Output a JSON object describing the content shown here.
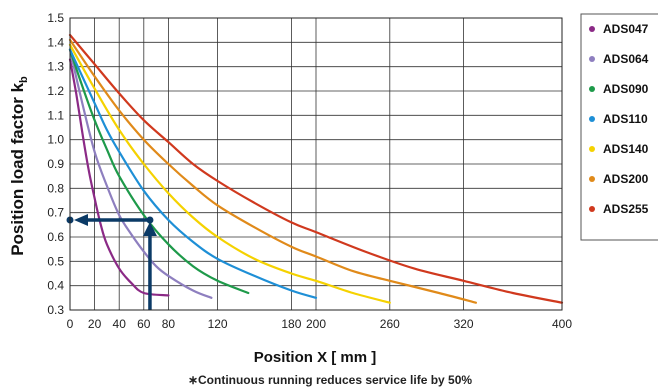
{
  "chart_data": {
    "type": "line",
    "xlabel": "Position X [ mm ]",
    "ylabel_main": "Position load factor k",
    "ylabel_sub": "b",
    "xlim": [
      0,
      400
    ],
    "ylim": [
      0.3,
      1.5
    ],
    "x_ticks": [
      0,
      20,
      40,
      60,
      80,
      120,
      180,
      200,
      260,
      320,
      400
    ],
    "y_ticks": [
      0.3,
      0.4,
      0.5,
      0.6,
      0.7,
      0.8,
      0.9,
      1.0,
      1.1,
      1.2,
      1.3,
      1.4,
      1.5
    ],
    "vertical_gridlines": [
      0,
      20,
      40,
      60,
      80,
      120,
      180,
      200,
      260,
      320,
      400
    ],
    "grid": true,
    "legend_position": "right",
    "footnote": "∗Continuous running reduces service life by 50%",
    "series": [
      {
        "name": "ADS047",
        "color": "#8b2a86",
        "points": [
          [
            0,
            1.33
          ],
          [
            5,
            1.19
          ],
          [
            10,
            1.03
          ],
          [
            15,
            0.88
          ],
          [
            20,
            0.76
          ],
          [
            25,
            0.65
          ],
          [
            30,
            0.57
          ],
          [
            40,
            0.47
          ],
          [
            50,
            0.41
          ],
          [
            60,
            0.37
          ],
          [
            80,
            0.36
          ]
        ]
      },
      {
        "name": "ADS064",
        "color": "#8e7fbf",
        "points": [
          [
            0,
            1.37
          ],
          [
            10,
            1.15
          ],
          [
            20,
            0.95
          ],
          [
            30,
            0.81
          ],
          [
            40,
            0.69
          ],
          [
            50,
            0.61
          ],
          [
            60,
            0.54
          ],
          [
            70,
            0.48
          ],
          [
            80,
            0.44
          ],
          [
            100,
            0.38
          ],
          [
            115,
            0.35
          ]
        ]
      },
      {
        "name": "ADS090",
        "color": "#1e9a4a",
        "points": [
          [
            0,
            1.37
          ],
          [
            10,
            1.22
          ],
          [
            20,
            1.08
          ],
          [
            30,
            0.96
          ],
          [
            40,
            0.85
          ],
          [
            60,
            0.69
          ],
          [
            80,
            0.57
          ],
          [
            100,
            0.48
          ],
          [
            120,
            0.42
          ],
          [
            145,
            0.37
          ]
        ]
      },
      {
        "name": "ADS110",
        "color": "#1e8fd6",
        "points": [
          [
            0,
            1.37
          ],
          [
            10,
            1.26
          ],
          [
            20,
            1.15
          ],
          [
            30,
            1.04
          ],
          [
            40,
            0.95
          ],
          [
            60,
            0.79
          ],
          [
            80,
            0.67
          ],
          [
            100,
            0.58
          ],
          [
            120,
            0.51
          ],
          [
            150,
            0.44
          ],
          [
            180,
            0.38
          ],
          [
            200,
            0.35
          ]
        ]
      },
      {
        "name": "ADS140",
        "color": "#f5d200",
        "points": [
          [
            0,
            1.39
          ],
          [
            20,
            1.21
          ],
          [
            40,
            1.04
          ],
          [
            60,
            0.9
          ],
          [
            80,
            0.78
          ],
          [
            100,
            0.68
          ],
          [
            120,
            0.6
          ],
          [
            150,
            0.51
          ],
          [
            180,
            0.45
          ],
          [
            200,
            0.42
          ],
          [
            230,
            0.37
          ],
          [
            260,
            0.33
          ]
        ]
      },
      {
        "name": "ADS200",
        "color": "#e08a1a",
        "points": [
          [
            0,
            1.41
          ],
          [
            20,
            1.26
          ],
          [
            40,
            1.12
          ],
          [
            60,
            1.0
          ],
          [
            80,
            0.9
          ],
          [
            100,
            0.81
          ],
          [
            120,
            0.73
          ],
          [
            150,
            0.64
          ],
          [
            180,
            0.56
          ],
          [
            200,
            0.52
          ],
          [
            230,
            0.46
          ],
          [
            260,
            0.42
          ],
          [
            300,
            0.37
          ],
          [
            330,
            0.33
          ]
        ]
      },
      {
        "name": "ADS255",
        "color": "#d0391e",
        "points": [
          [
            0,
            1.43
          ],
          [
            20,
            1.31
          ],
          [
            40,
            1.19
          ],
          [
            60,
            1.08
          ],
          [
            80,
            0.99
          ],
          [
            100,
            0.9
          ],
          [
            120,
            0.83
          ],
          [
            150,
            0.74
          ],
          [
            180,
            0.66
          ],
          [
            200,
            0.62
          ],
          [
            240,
            0.54
          ],
          [
            280,
            0.47
          ],
          [
            320,
            0.42
          ],
          [
            360,
            0.37
          ],
          [
            400,
            0.33
          ]
        ]
      }
    ],
    "annotation": {
      "color": "#0b3a66",
      "x_value": 65,
      "y_value": 0.67
    }
  }
}
